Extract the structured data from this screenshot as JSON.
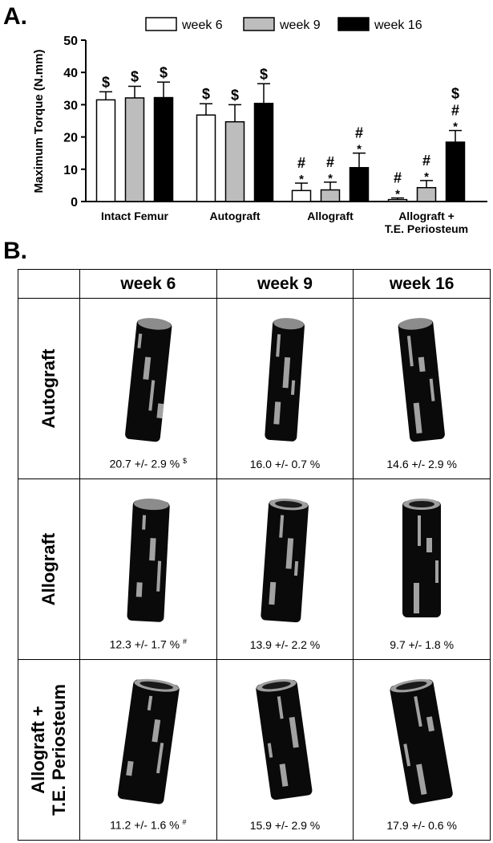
{
  "panel_a_label": "A.",
  "panel_b_label": "B.",
  "chart_data": {
    "type": "bar",
    "ylabel": "Maximum Torque (N.mm)",
    "ylim": [
      0,
      50
    ],
    "yticks": [
      0,
      10,
      20,
      30,
      40,
      50
    ],
    "categories": [
      "Intact Femur",
      "Autograft",
      "Allograft",
      "Allograft +|T.E. Periosteum"
    ],
    "legend_position": "top",
    "series": [
      {
        "name": "week 6",
        "color": "#ffffff",
        "values": [
          31.5,
          26.8,
          3.4,
          0.6
        ],
        "errors": [
          2.5,
          3.5,
          2.3,
          0.5
        ],
        "annotations": [
          [
            "$"
          ],
          [
            "$"
          ],
          [
            "#",
            "*"
          ],
          [
            "#",
            "*"
          ]
        ]
      },
      {
        "name": "week 9",
        "color": "#bdbdbd",
        "values": [
          32.1,
          24.7,
          3.6,
          4.3
        ],
        "errors": [
          3.6,
          5.3,
          2.4,
          2.2
        ],
        "annotations": [
          [
            "$"
          ],
          [
            "$"
          ],
          [
            "#",
            "*"
          ],
          [
            "#",
            "*"
          ]
        ]
      },
      {
        "name": "week 16",
        "color": "#000000",
        "values": [
          32.2,
          30.4,
          10.5,
          18.4
        ],
        "errors": [
          4.8,
          6.1,
          4.5,
          3.6
        ],
        "annotations": [
          [
            "$"
          ],
          [
            "$"
          ],
          [
            "#",
            "*"
          ],
          [
            "$",
            "#",
            "*"
          ]
        ]
      }
    ]
  },
  "table": {
    "columns": [
      "week 6",
      "week 9",
      "week 16"
    ],
    "rows": [
      {
        "label": "Autograft",
        "values": [
          {
            "text": "20.7 +/- 2.9 %",
            "sup": "$"
          },
          {
            "text": "16.0 +/- 0.7 %",
            "sup": ""
          },
          {
            "text": "14.6 +/- 2.9 %",
            "sup": ""
          }
        ]
      },
      {
        "label": "Allograft",
        "values": [
          {
            "text": "12.3 +/- 1.7 %",
            "sup": "#"
          },
          {
            "text": "13.9 +/- 2.2 %",
            "sup": ""
          },
          {
            "text": "9.7 +/- 1.8 %",
            "sup": ""
          }
        ]
      },
      {
        "label": "Allograft +|T.E. Periosteum",
        "values": [
          {
            "text": "11.2 +/- 1.6 %",
            "sup": "#"
          },
          {
            "text": "15.9 +/- 2.9 %",
            "sup": ""
          },
          {
            "text": "17.9 +/- 0.6 %",
            "sup": ""
          }
        ]
      }
    ]
  }
}
